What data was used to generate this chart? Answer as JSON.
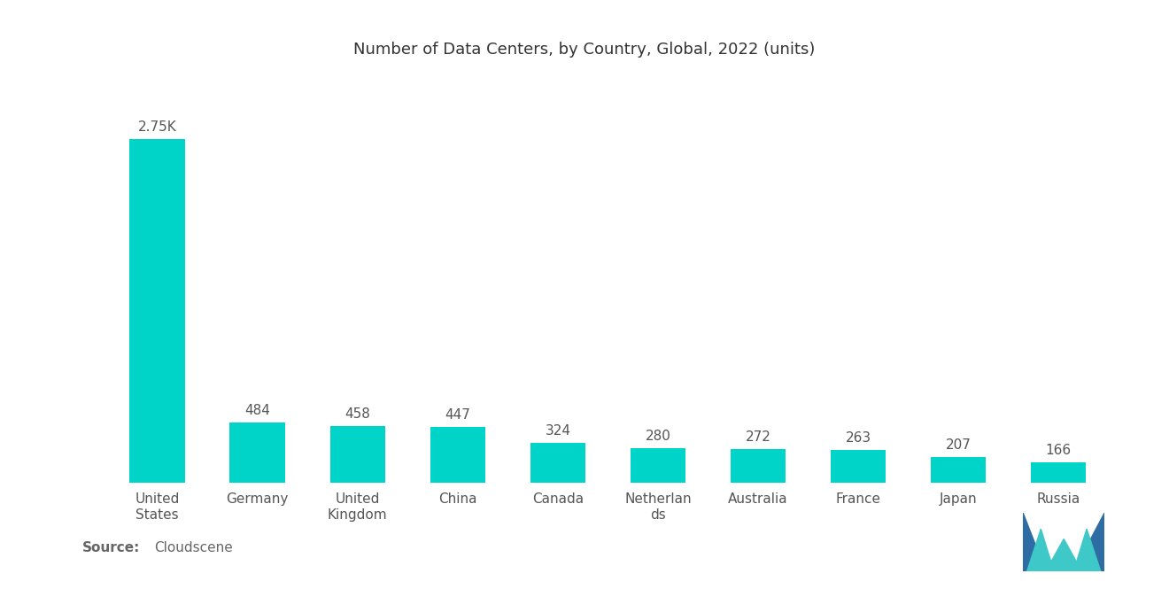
{
  "title": "Number of Data Centers, by Country, Global, 2022 (units)",
  "categories": [
    "United\nStates",
    "Germany",
    "United\nKingdom",
    "China",
    "Canada",
    "Netherlan\nds",
    "Australia",
    "France",
    "Japan",
    "Russia"
  ],
  "values": [
    2750,
    484,
    458,
    447,
    324,
    280,
    272,
    263,
    207,
    166
  ],
  "labels": [
    "2.75K",
    "484",
    "458",
    "447",
    "324",
    "280",
    "272",
    "263",
    "207",
    "166"
  ],
  "bar_color": "#00D4C8",
  "background_color": "#ffffff",
  "title_fontsize": 13,
  "label_fontsize": 11,
  "tick_fontsize": 11,
  "source_bold": "Source:",
  "source_normal": "Cloudscene",
  "source_fontsize": 11,
  "source_color": "#666666",
  "logo_dark": "#2E6DA4",
  "logo_teal": "#3FC8C8"
}
